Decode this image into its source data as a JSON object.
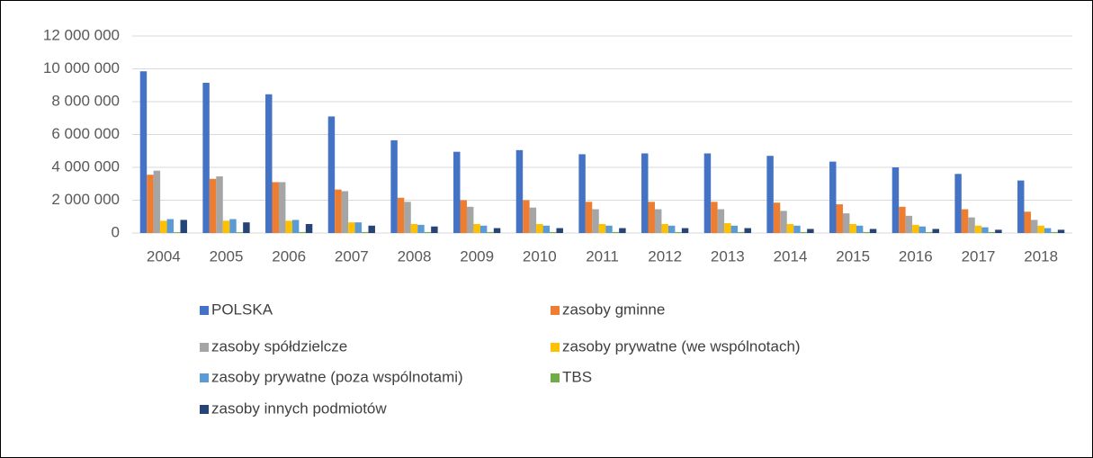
{
  "chart_data": {
    "type": "bar",
    "categories": [
      "2004",
      "2005",
      "2006",
      "2007",
      "2008",
      "2009",
      "2010",
      "2011",
      "2012",
      "2013",
      "2014",
      "2015",
      "2016",
      "2017",
      "2018"
    ],
    "series": [
      {
        "name": "POLSKA",
        "color": "#4472c4",
        "values": [
          9850000,
          9150000,
          8450000,
          7100000,
          5650000,
          4950000,
          5050000,
          4800000,
          4850000,
          4850000,
          4700000,
          4350000,
          4000000,
          3600000,
          3200000
        ]
      },
      {
        "name": " zasoby gminne",
        "color": "#ed7d31",
        "values": [
          3550000,
          3300000,
          3100000,
          2650000,
          2150000,
          2000000,
          2000000,
          1900000,
          1900000,
          1900000,
          1850000,
          1750000,
          1600000,
          1450000,
          1300000
        ]
      },
      {
        "name": "zasoby spółdzielcze",
        "color": "#a5a5a5",
        "values": [
          3800000,
          3450000,
          3100000,
          2550000,
          1900000,
          1600000,
          1550000,
          1450000,
          1450000,
          1450000,
          1350000,
          1200000,
          1050000,
          950000,
          800000
        ]
      },
      {
        "name": "zasoby prywatne (we wspólnotach)",
        "color": "#ffc000",
        "values": [
          750000,
          750000,
          750000,
          650000,
          550000,
          550000,
          550000,
          550000,
          550000,
          600000,
          550000,
          550000,
          500000,
          450000,
          450000
        ]
      },
      {
        "name": "zasoby prywatne (poza wspólnotami)",
        "color": "#5b9bd5",
        "values": [
          850000,
          850000,
          800000,
          650000,
          500000,
          450000,
          450000,
          450000,
          450000,
          450000,
          450000,
          450000,
          400000,
          350000,
          300000
        ]
      },
      {
        "name": "TBS",
        "color": "#70ad47",
        "values": [
          50000,
          50000,
          60000,
          60000,
          60000,
          60000,
          60000,
          60000,
          60000,
          60000,
          60000,
          60000,
          60000,
          60000,
          60000
        ]
      },
      {
        "name": "zasoby innych podmiotów",
        "color": "#264478",
        "values": [
          800000,
          650000,
          550000,
          450000,
          400000,
          300000,
          300000,
          300000,
          300000,
          300000,
          250000,
          250000,
          250000,
          200000,
          200000
        ]
      }
    ],
    "ylim": [
      0,
      12000000
    ],
    "yticks": [
      0,
      {
        "value": 2000000,
        "label": "2 000 000"
      },
      {
        "value": 4000000,
        "label": "4 000 000"
      },
      {
        "value": 6000000,
        "label": "6 000 000"
      },
      {
        "value": 8000000,
        "label": "8 000 000"
      },
      {
        "value": 10000000,
        "label": "10 000 000"
      },
      {
        "value": 12000000,
        "label": "12 000 000"
      }
    ],
    "grid": true,
    "legend": "bottom"
  }
}
